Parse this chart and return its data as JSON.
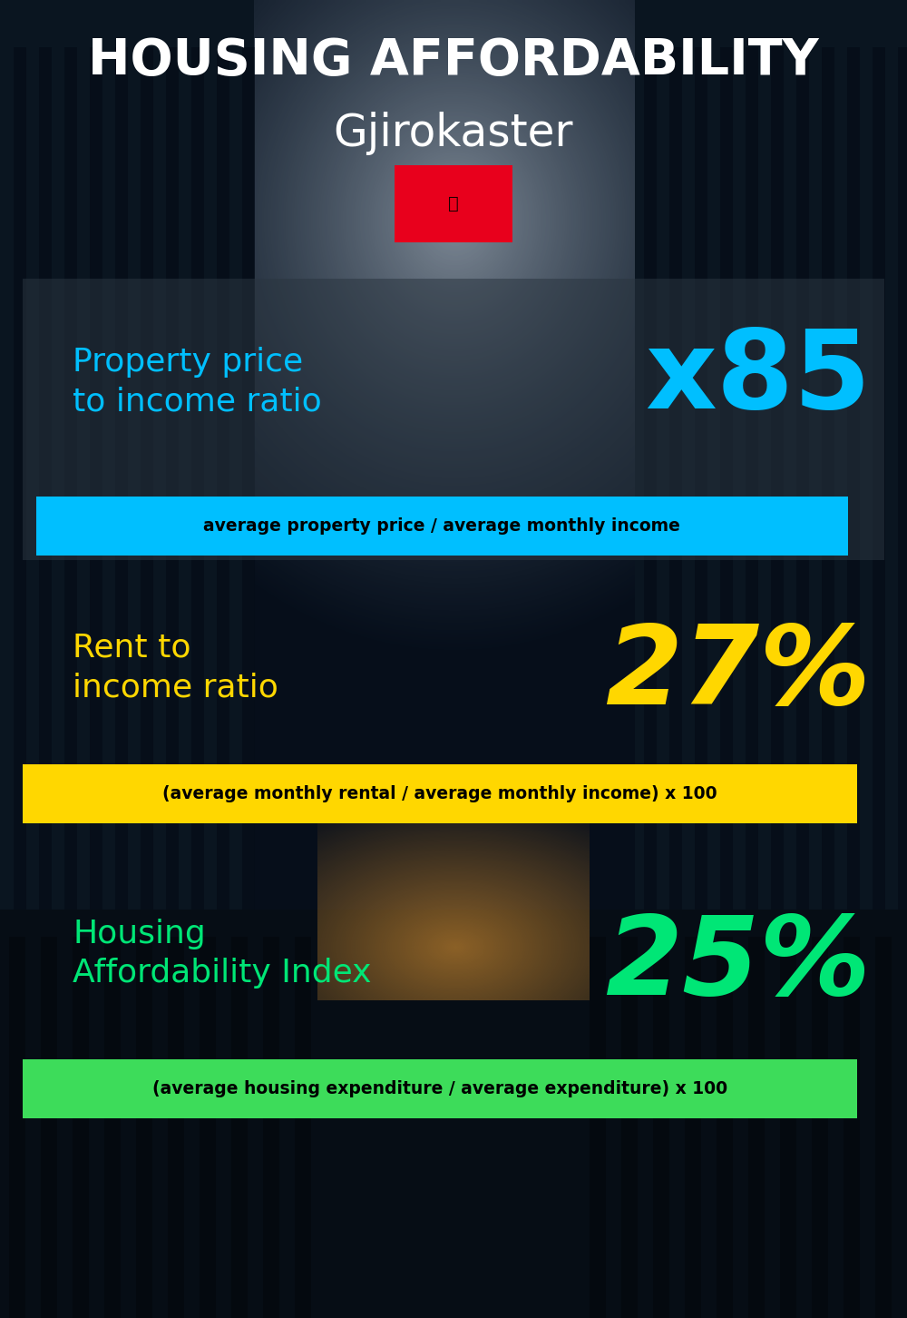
{
  "title_main": "HOUSING AFFORDABILITY",
  "title_sub": "Gjirokaster",
  "bg_color": "#050d18",
  "section1_label": "Property price\nto income ratio",
  "section1_value": "x85",
  "section1_label_color": "#00bfff",
  "section1_value_color": "#00bfff",
  "section1_formula": "average property price / average monthly income",
  "section1_formula_bg": "#00bfff",
  "section2_label": "Rent to\nincome ratio",
  "section2_value": "27%",
  "section2_label_color": "#ffd700",
  "section2_value_color": "#ffd700",
  "section2_formula": "(average monthly rental / average monthly income) x 100",
  "section2_formula_bg": "#ffd700",
  "section3_label": "Housing\nAffordability Index",
  "section3_value": "25%",
  "section3_label_color": "#00e676",
  "section3_value_color": "#00e676",
  "section3_formula": "(average housing expenditure / average expenditure) x 100",
  "section3_formula_bg": "#3ddc5a",
  "flag_color": "#e8001c",
  "title_color": "#ffffff",
  "formula_text_color": "#000000"
}
